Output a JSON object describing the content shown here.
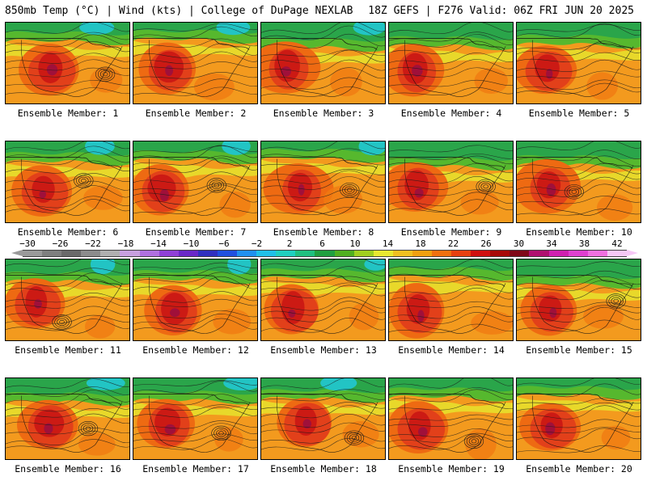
{
  "header": {
    "title": "850mb Temp (°C) | Wind (kts) | College of DuPage NEXLAB",
    "run_info": "18Z GEFS | F276 Valid: 06Z FRI JUN 20 2025"
  },
  "colorbar": {
    "ticks": [
      "−30",
      "−26",
      "−22",
      "−18",
      "−14",
      "−10",
      "−6",
      "−2",
      "2",
      "6",
      "10",
      "14",
      "18",
      "22",
      "26",
      "30",
      "34",
      "38",
      "42"
    ],
    "colors": [
      "#9a9a9a",
      "#7f7f7f",
      "#6a6a6a",
      "#8c8c8c",
      "#b0b0b0",
      "#c8a0e0",
      "#b070e0",
      "#9040d8",
      "#6a28c8",
      "#3030c0",
      "#2050e0",
      "#2090f0",
      "#20c0e8",
      "#20d0c0",
      "#20c080",
      "#20a040",
      "#50b020",
      "#a0d020",
      "#e8e830",
      "#f0c020",
      "#f0a010",
      "#f07010",
      "#e84010",
      "#d01010",
      "#a80808",
      "#800818",
      "#b01070",
      "#d020b0",
      "#e040d0",
      "#f070e0",
      "#f6c8f6"
    ],
    "units": "°C"
  },
  "panels": [
    {
      "caption": "Ensemble Member: 1"
    },
    {
      "caption": "Ensemble Member: 2"
    },
    {
      "caption": "Ensemble Member: 3"
    },
    {
      "caption": "Ensemble Member: 4"
    },
    {
      "caption": "Ensemble Member: 5"
    },
    {
      "caption": "Ensemble Member: 6"
    },
    {
      "caption": "Ensemble Member: 7"
    },
    {
      "caption": "Ensemble Member: 8"
    },
    {
      "caption": "Ensemble Member: 9"
    },
    {
      "caption": "Ensemble Member: 10"
    },
    {
      "caption": "Ensemble Member: 11"
    },
    {
      "caption": "Ensemble Member: 12"
    },
    {
      "caption": "Ensemble Member: 13"
    },
    {
      "caption": "Ensemble Member: 14"
    },
    {
      "caption": "Ensemble Member: 15"
    },
    {
      "caption": "Ensemble Member: 16"
    },
    {
      "caption": "Ensemble Member: 17"
    },
    {
      "caption": "Ensemble Member: 18"
    },
    {
      "caption": "Ensemble Member: 19"
    },
    {
      "caption": "Ensemble Member: 20"
    }
  ]
}
